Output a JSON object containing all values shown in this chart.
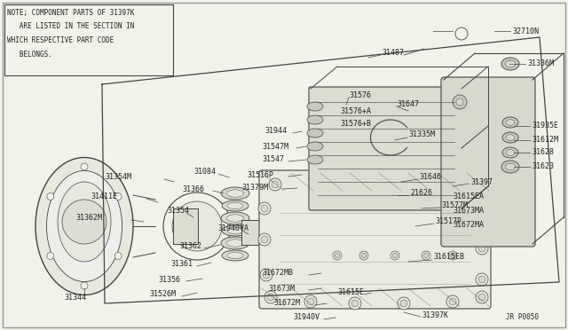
{
  "bg_color": "#f2f2ea",
  "border_color": "#999999",
  "line_color": "#444444",
  "text_color": "#222222",
  "note_text_lines": [
    "NOTE; COMPONENT PARTS OF 31397K",
    "   ARE LISTED IN THE SECTION IN",
    "WHICH RESPECTIVE PART CODE",
    "   BELONGS."
  ],
  "diagram_id": "JR P0050",
  "figsize": [
    6.4,
    3.72
  ],
  "dpi": 100
}
